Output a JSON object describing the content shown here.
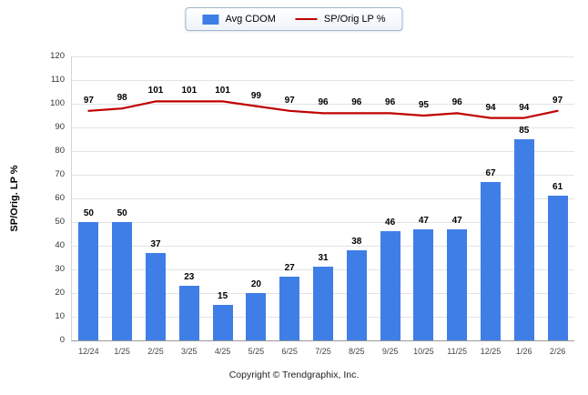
{
  "chart_data": {
    "type": "bar+line",
    "categories": [
      "12/24",
      "1/25",
      "2/25",
      "3/25",
      "4/25",
      "5/25",
      "6/25",
      "7/25",
      "8/25",
      "9/25",
      "10/25",
      "11/25",
      "12/25",
      "1/26",
      "2/26"
    ],
    "series": [
      {
        "name": "Avg CDOM",
        "type": "bar",
        "color": "#3f7ee6",
        "values": [
          50,
          50,
          37,
          23,
          15,
          20,
          27,
          31,
          38,
          46,
          47,
          47,
          67,
          85,
          61
        ]
      },
      {
        "name": "SP/Orig LP %",
        "type": "line",
        "color": "#c00000",
        "values": [
          97,
          98,
          101,
          101,
          101,
          99,
          97,
          96,
          96,
          96,
          95,
          96,
          94,
          94,
          97
        ]
      }
    ],
    "title": "",
    "xlabel": "",
    "ylabel": "SP/Orig. LP %",
    "ylim": [
      0,
      120
    ],
    "ytick_step": 10,
    "grid": true,
    "legend_position": "top-center"
  },
  "footer": {
    "copyright": "Copyright © Trendgraphix, Inc."
  }
}
